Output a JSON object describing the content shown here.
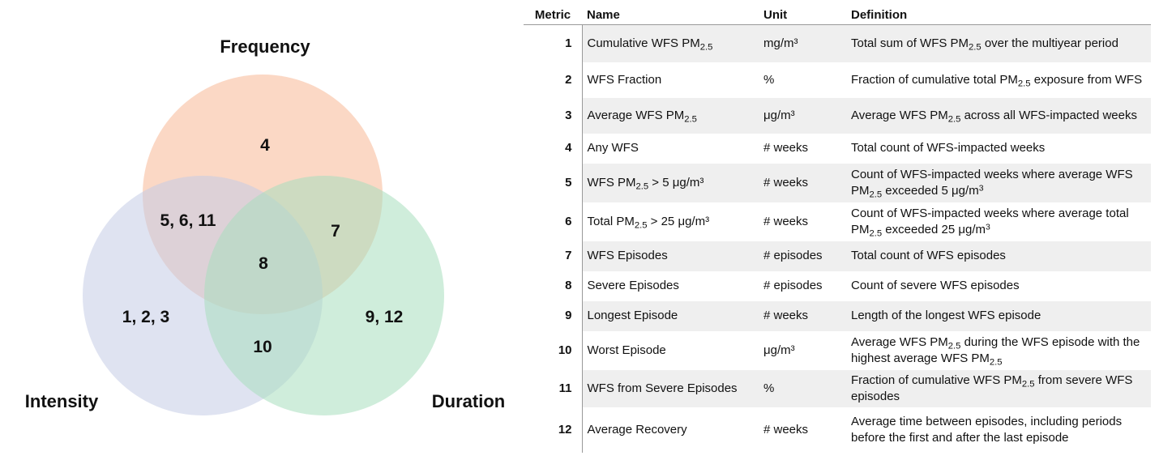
{
  "venn": {
    "circles": [
      {
        "name": "Frequency",
        "color": "#f7b896"
      },
      {
        "name": "Intensity",
        "color": "#c4cce6"
      },
      {
        "name": "Duration",
        "color": "#a8dfbd"
      }
    ],
    "regions": {
      "frequency_only": "4",
      "intensity_frequency": "5, 6, 11",
      "frequency_duration": "7",
      "center": "8",
      "intensity_only": "1, 2, 3",
      "duration_only": "9, 12",
      "intensity_duration": "10"
    }
  },
  "table": {
    "headers": {
      "metric": "Metric",
      "name": "Name",
      "unit": "Unit",
      "definition": "Definition"
    },
    "rows": [
      {
        "metric": "1",
        "name": "Cumulative WFS PM<sub>2.5</sub>",
        "unit": "mg/m³",
        "definition": "Total sum of WFS PM<sub>2.5</sub> over the multiyear period"
      },
      {
        "metric": "2",
        "name": "WFS Fraction",
        "unit": "%",
        "definition": "Fraction of cumulative total PM<sub>2.5</sub> exposure from WFS"
      },
      {
        "metric": "3",
        "name": "Average WFS PM<sub>2.5</sub>",
        "unit": "μg/m³",
        "definition": "Average WFS PM<sub>2.5</sub> across all WFS-impacted weeks"
      },
      {
        "metric": "4",
        "name": "Any WFS",
        "unit": "# weeks",
        "definition": "Total count of WFS-impacted weeks"
      },
      {
        "metric": "5",
        "name": "WFS PM<sub>2.5</sub> > 5 μg/m³",
        "unit": "# weeks",
        "definition": "Count of WFS-impacted weeks where average WFS PM<sub>2.5</sub> exceeded 5 μg/m<sup>3</sup>"
      },
      {
        "metric": "6",
        "name": "Total PM<sub>2.5</sub> > 25 μg/m³",
        "unit": "# weeks",
        "definition": "Count of WFS-impacted weeks where average total PM<sub>2.5</sub> exceeded 25 μg/m<sup>3</sup>"
      },
      {
        "metric": "7",
        "name": "WFS Episodes",
        "unit": "# episodes",
        "definition": "Total count of WFS episodes"
      },
      {
        "metric": "8",
        "name": "Severe Episodes",
        "unit": "# episodes",
        "definition": "Count of severe WFS episodes"
      },
      {
        "metric": "9",
        "name": "Longest Episode",
        "unit": "# weeks",
        "definition": "Length of the longest WFS episode"
      },
      {
        "metric": "10",
        "name": "Worst Episode",
        "unit": "μg/m³",
        "definition": "Average WFS PM<sub>2.5</sub> during the WFS episode with the highest average WFS PM<sub>2.5</sub>"
      },
      {
        "metric": "11",
        "name": "WFS from Severe Episodes",
        "unit": "%",
        "definition": "Fraction of cumulative WFS PM<sub>2.5</sub> from severe WFS episodes"
      },
      {
        "metric": "12",
        "name": "Average Recovery",
        "unit": "# weeks",
        "definition": "Average time between episodes, including periods before the first and after the last episode"
      }
    ]
  }
}
